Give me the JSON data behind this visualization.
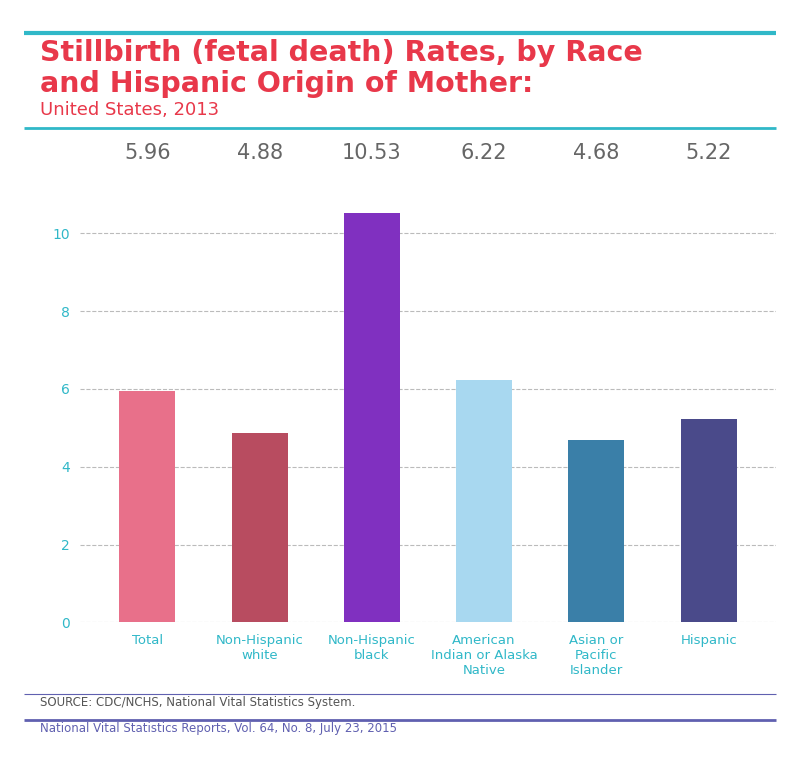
{
  "title_line1": "Stillbirth (fetal death) Rates, by Race",
  "title_line2": "and Hispanic Origin of Mother:",
  "subtitle": "United States, 2013",
  "categories": [
    "Total",
    "Non-Hispanic\nwhite",
    "Non-Hispanic\nblack",
    "American\nIndian or Alaska\nNative",
    "Asian or\nPacific\nIslander",
    "Hispanic"
  ],
  "values": [
    5.96,
    4.88,
    10.53,
    6.22,
    4.68,
    5.22
  ],
  "value_labels": [
    "5.96",
    "4.88",
    "10.53",
    "6.22",
    "4.68",
    "5.22"
  ],
  "bar_colors": [
    "#e8708a",
    "#b84c60",
    "#8030c0",
    "#a8d8f0",
    "#3a7fa8",
    "#4a4a8a"
  ],
  "ylim": [
    0,
    11
  ],
  "yticks": [
    0,
    2,
    4,
    6,
    8,
    10
  ],
  "title_color": "#e8384a",
  "subtitle_color": "#e8384a",
  "teal_color": "#30b8c8",
  "purple_color": "#6060b0",
  "grid_color": "#bbbbbb",
  "tick_color": "#30b8c8",
  "source_text": "SOURCE: CDC/NCHS, National Vital Statistics System.",
  "footer_text": "National Vital Statistics Reports, Vol. 64, No. 8, July 23, 2015",
  "background_color": "#ffffff",
  "value_label_color": "#666666"
}
